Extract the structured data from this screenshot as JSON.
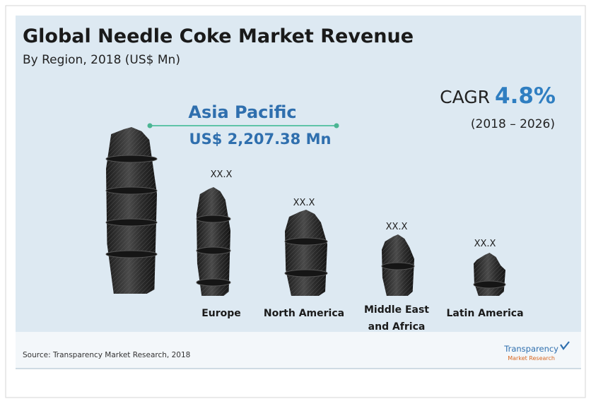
{
  "title": "Global Needle Coke Market Revenue",
  "subtitle": "By Region, 2018 (US$ Mn)",
  "cagr": {
    "label": "CAGR",
    "value": "4.8%",
    "period": "(2018 – 2026)"
  },
  "highlight": {
    "region": "Asia Pacific",
    "value": "US$ 2,207.38 Mn"
  },
  "regions": [
    {
      "name": [
        "Europe"
      ],
      "label": "XX.X"
    },
    {
      "name": [
        "North America"
      ],
      "label": "XX.X"
    },
    {
      "name": [
        "Middle East",
        "and Africa"
      ],
      "label": "XX.X"
    },
    {
      "name": [
        "Latin America"
      ],
      "label": "XX.X"
    }
  ],
  "source": "Source: Transparency Market Research, 2018",
  "logo": {
    "name": "Transparency",
    "sub": "Market Research"
  }
}
